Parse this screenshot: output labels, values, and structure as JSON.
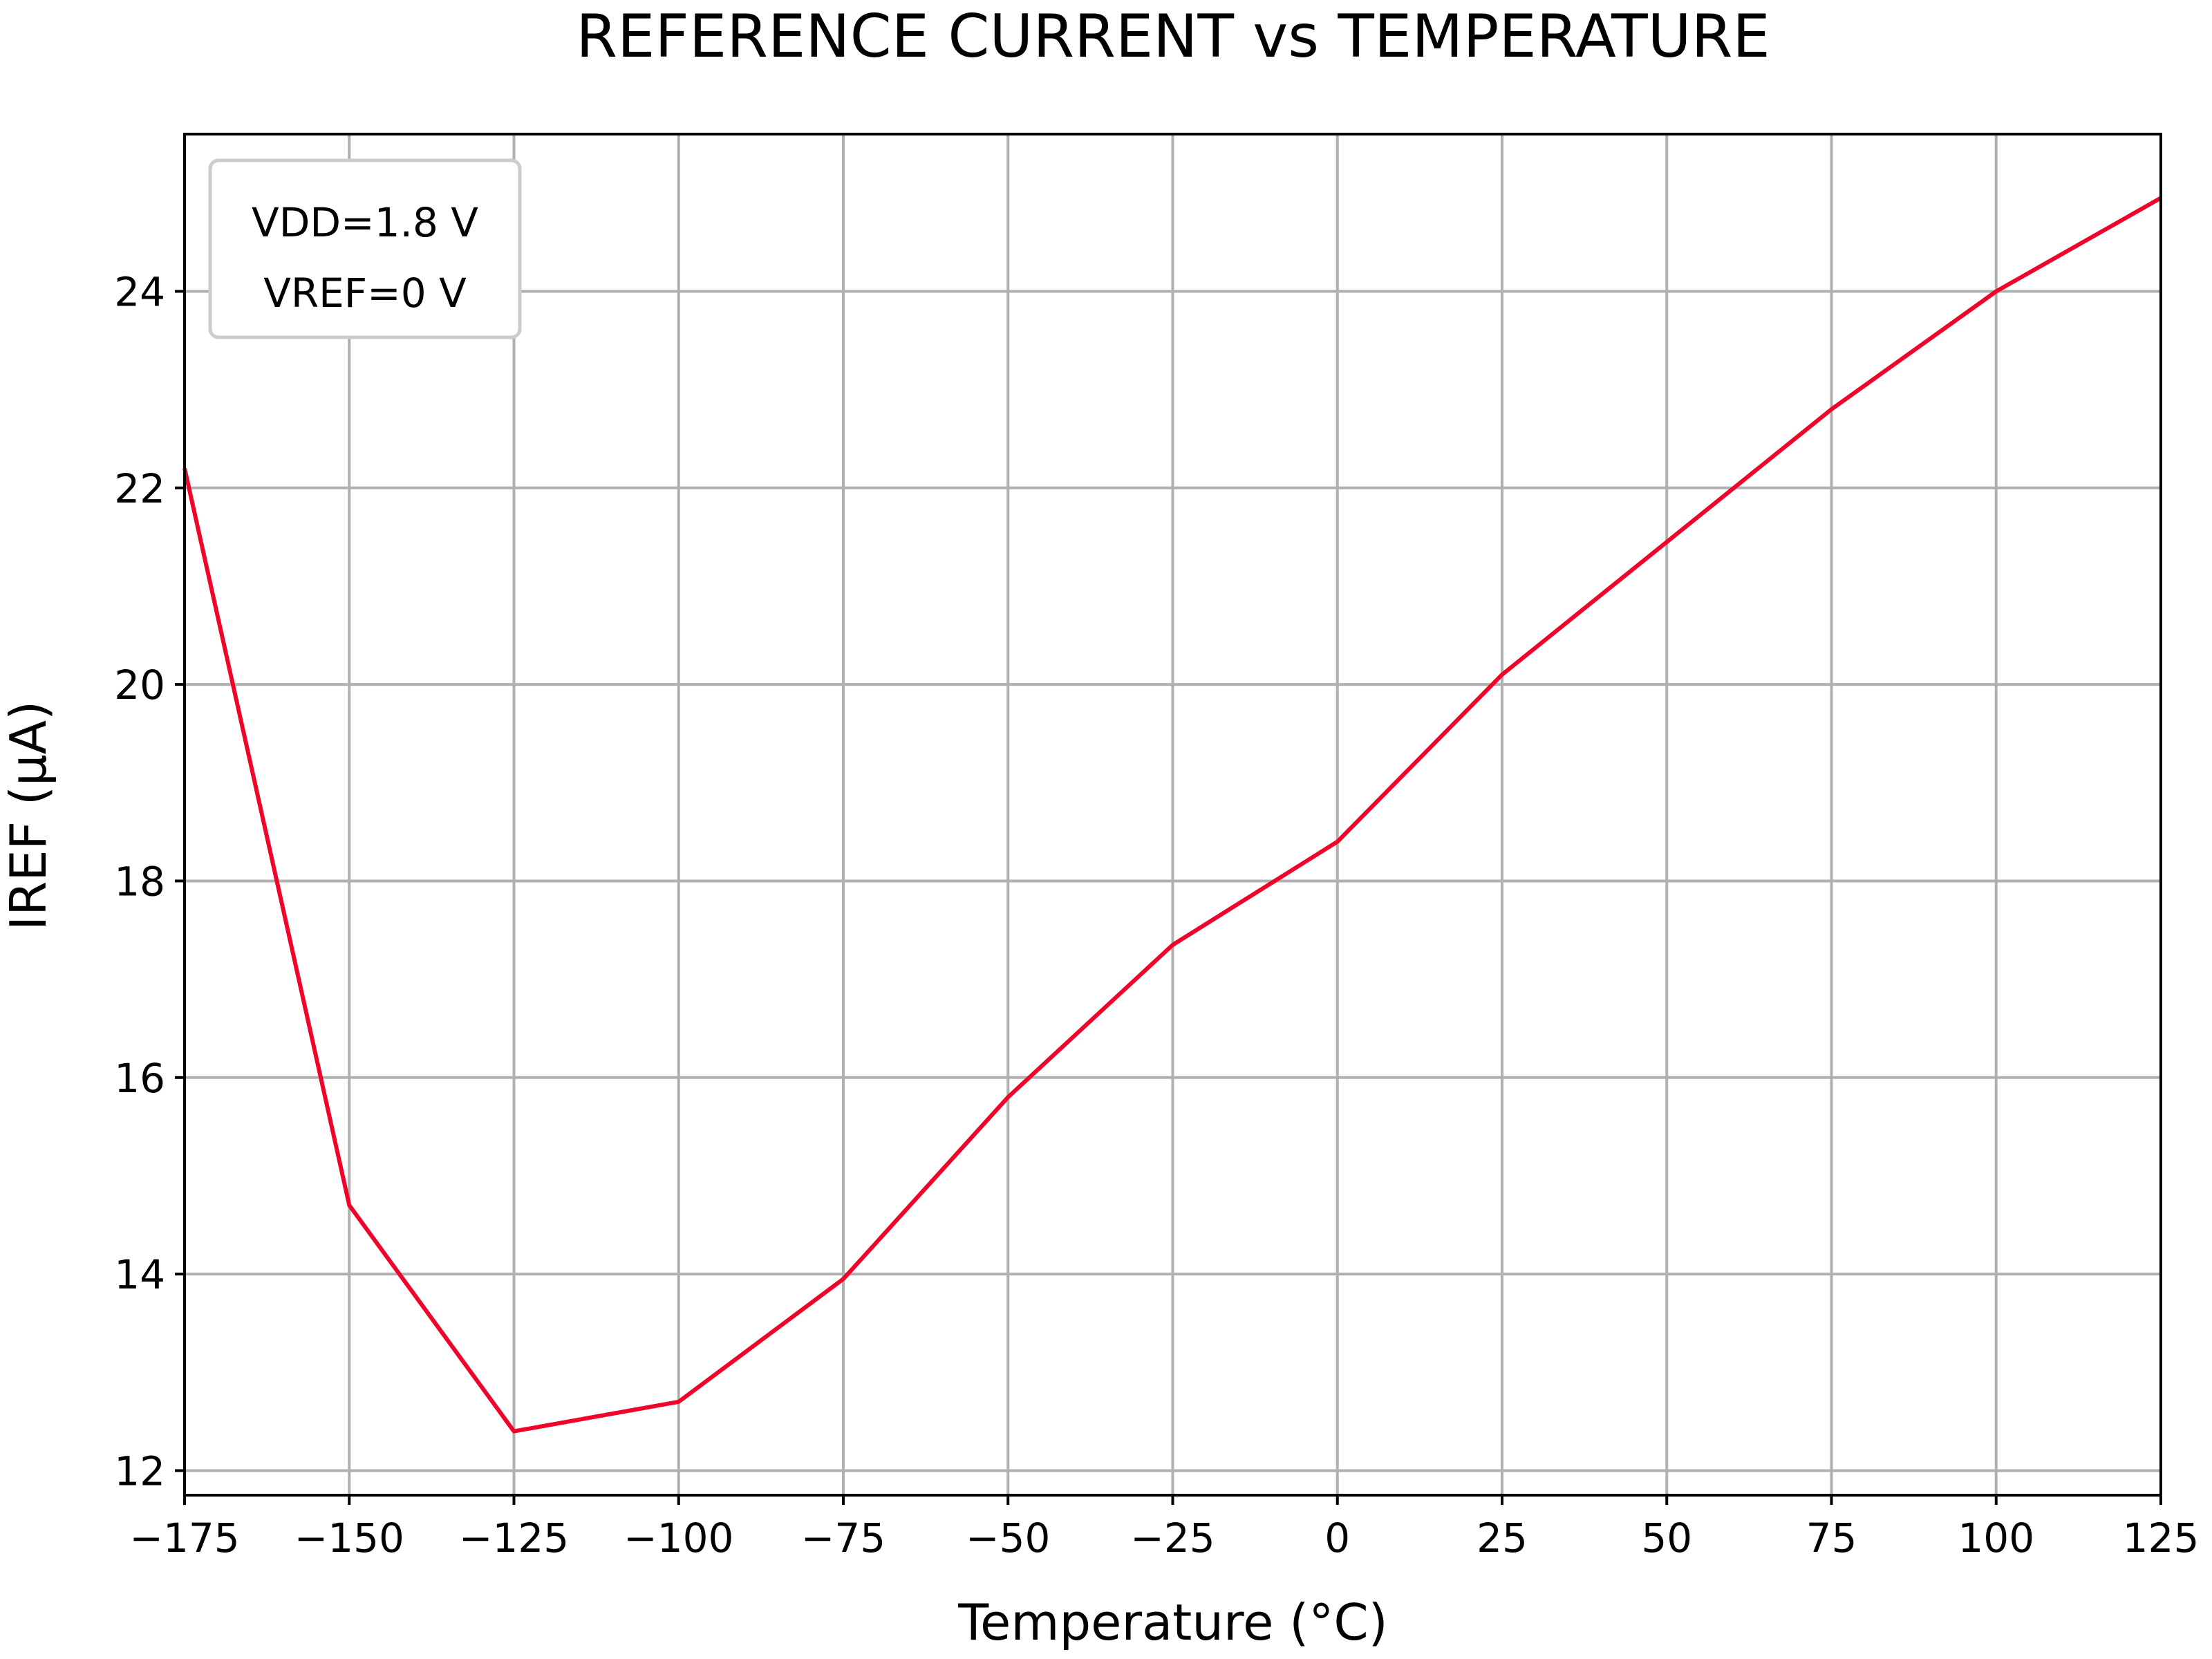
{
  "chart_data": {
    "type": "line",
    "title": "REFERENCE CURRENT vs TEMPERATURE",
    "xlabel": "Temperature (°C)",
    "ylabel": "IREF (µA)",
    "xlim": [
      -175,
      125
    ],
    "ylim": [
      11.75,
      25.6
    ],
    "x_ticks": [
      -175,
      -150,
      -125,
      -100,
      -75,
      -50,
      -25,
      0,
      25,
      50,
      75,
      100,
      125
    ],
    "x_tick_labels": [
      "−175",
      "−150",
      "−125",
      "−100",
      "−75",
      "−50",
      "−25",
      "0",
      "25",
      "50",
      "75",
      "100",
      "125"
    ],
    "y_ticks": [
      12,
      14,
      16,
      18,
      20,
      22,
      24
    ],
    "y_tick_labels": [
      "12",
      "14",
      "16",
      "18",
      "20",
      "22",
      "24"
    ],
    "grid": true,
    "legend_placement": "top-left",
    "annotation_lines": [
      "VDD=1.8 V",
      "VREF=0 V"
    ],
    "series": [
      {
        "color": "#f0042a",
        "x": [
          -175,
          -150,
          -125,
          -100,
          -75,
          -50,
          -25,
          0,
          25,
          50,
          75,
          100,
          125
        ],
        "y": [
          22.2,
          14.7,
          12.4,
          12.7,
          13.95,
          15.8,
          17.35,
          18.4,
          20.1,
          21.45,
          22.8,
          24.0,
          24.95
        ]
      }
    ]
  }
}
